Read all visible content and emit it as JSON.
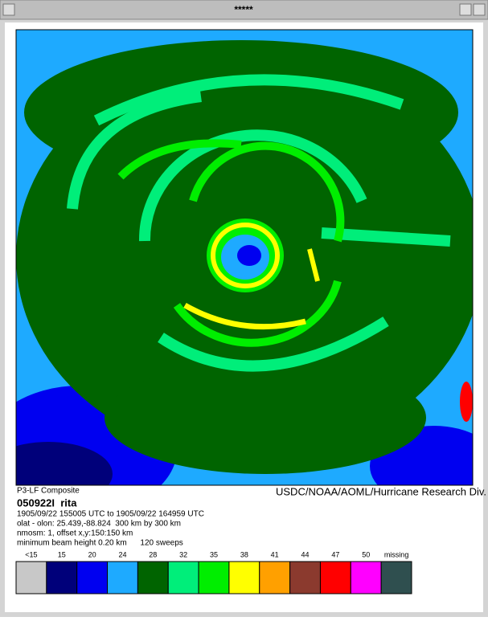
{
  "window": {
    "title": "*****"
  },
  "product": {
    "left_caption": "P3-LF Composite",
    "right_caption": "USDC/NOAA/AOML/Hurricane Research Div.",
    "id": "050922I  rita",
    "lines": [
      "1905/09/22 155005 UTC to 1905/09/22 164959 UTC",
      "olat - olon: 25.439,-88.824  300 km by 300 km",
      "nmosm: 1, offset x,y:150:150 km",
      "minimum beam height 0.20 km      120 sweeps"
    ]
  },
  "legend": {
    "items": [
      {
        "label": "<15",
        "color": "#c8c8c8"
      },
      {
        "label": "15",
        "color": "#00007a"
      },
      {
        "label": "20",
        "color": "#0000f0"
      },
      {
        "label": "24",
        "color": "#1eaaff"
      },
      {
        "label": "28",
        "color": "#006400"
      },
      {
        "label": "32",
        "color": "#00ee7a"
      },
      {
        "label": "35",
        "color": "#00ee00"
      },
      {
        "label": "38",
        "color": "#ffff00"
      },
      {
        "label": "41",
        "color": "#ffa000"
      },
      {
        "label": "44",
        "color": "#8b3a2e"
      },
      {
        "label": "47",
        "color": "#ff0000"
      },
      {
        "label": "50",
        "color": "#ff00ff"
      },
      {
        "label": "missing",
        "color": "#2f4f4f"
      }
    ]
  }
}
